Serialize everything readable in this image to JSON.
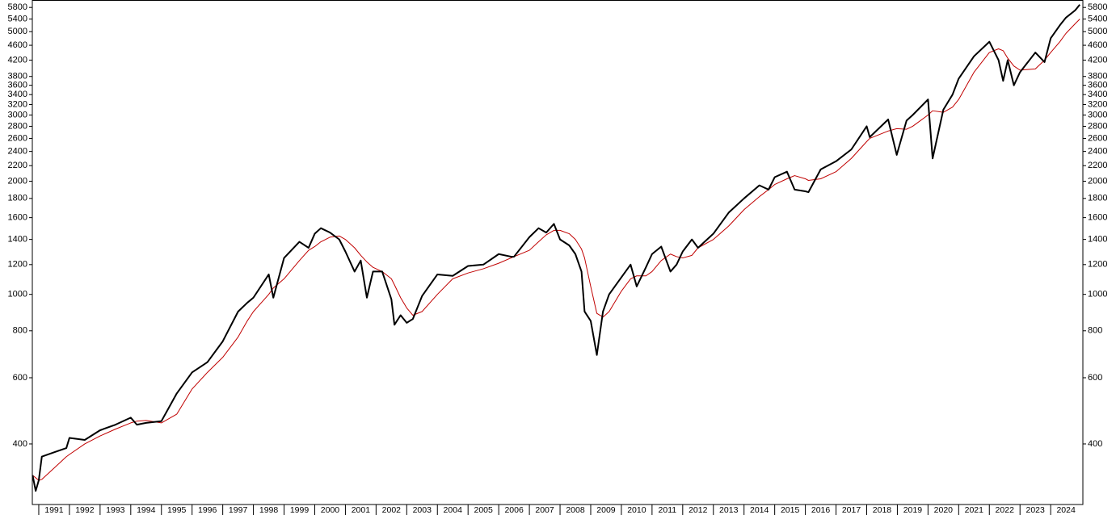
{
  "chart_data": {
    "type": "line",
    "log_y": true,
    "xlim": [
      1990.79,
      2025.05
    ],
    "ylim": [
      276,
      6070
    ],
    "xticks": [
      1991,
      1992,
      1993,
      1994,
      1995,
      1996,
      1997,
      1998,
      1999,
      2000,
      2001,
      2002,
      2003,
      2004,
      2005,
      2006,
      2007,
      2008,
      2009,
      2010,
      2011,
      2012,
      2013,
      2014,
      2015,
      2016,
      2017,
      2018,
      2019,
      2020,
      2021,
      2022,
      2023,
      2024
    ],
    "yticks": [
      400,
      600,
      800,
      1000,
      1200,
      1400,
      1600,
      1800,
      2000,
      2200,
      2400,
      2600,
      2800,
      3000,
      3200,
      3400,
      3600,
      3800,
      4200,
      4600,
      5000,
      5400,
      5800
    ],
    "x": [
      1990.8,
      1990.9,
      1991.0,
      1991.1,
      1991.5,
      1991.9,
      1992.0,
      1992.5,
      1993.0,
      1993.5,
      1994.0,
      1994.2,
      1994.5,
      1995.0,
      1995.5,
      1996.0,
      1996.5,
      1997.0,
      1997.5,
      1997.8,
      1998.0,
      1998.5,
      1998.65,
      1999.0,
      1999.5,
      1999.8,
      2000.0,
      2000.2,
      2000.5,
      2000.8,
      2001.0,
      2001.3,
      2001.5,
      2001.7,
      2001.9,
      2002.2,
      2002.5,
      2002.6,
      2002.8,
      2003.0,
      2003.2,
      2003.5,
      2004.0,
      2004.5,
      2005.0,
      2005.5,
      2006.0,
      2006.4,
      2006.5,
      2007.0,
      2007.3,
      2007.55,
      2007.8,
      2008.0,
      2008.3,
      2008.5,
      2008.7,
      2008.8,
      2009.0,
      2009.2,
      2009.4,
      2009.6,
      2010.0,
      2010.3,
      2010.5,
      2010.8,
      2011.0,
      2011.3,
      2011.6,
      2011.8,
      2012.0,
      2012.3,
      2012.5,
      2013.0,
      2013.5,
      2014.0,
      2014.5,
      2014.8,
      2015.0,
      2015.4,
      2015.65,
      2016.0,
      2016.1,
      2016.5,
      2017.0,
      2017.5,
      2018.0,
      2018.1,
      2018.7,
      2018.98,
      2019.3,
      2019.5,
      2020.0,
      2020.15,
      2020.5,
      2020.8,
      2021.0,
      2021.5,
      2022.0,
      2022.3,
      2022.45,
      2022.6,
      2022.8,
      2023.0,
      2023.5,
      2023.8,
      2024.0,
      2024.3,
      2024.5,
      2024.8,
      2024.95
    ],
    "series": [
      {
        "color": "#000000",
        "values": [
          330,
          300,
          320,
          370,
          380,
          390,
          415,
          410,
          435,
          450,
          470,
          450,
          455,
          460,
          545,
          620,
          660,
          750,
          900,
          950,
          980,
          1130,
          980,
          1250,
          1380,
          1330,
          1450,
          1500,
          1460,
          1400,
          1300,
          1150,
          1230,
          980,
          1150,
          1150,
          970,
          830,
          880,
          840,
          860,
          990,
          1130,
          1120,
          1190,
          1200,
          1280,
          1260,
          1260,
          1420,
          1500,
          1460,
          1540,
          1400,
          1350,
          1280,
          1150,
          900,
          850,
          690,
          900,
          1000,
          1110,
          1200,
          1050,
          1180,
          1280,
          1340,
          1150,
          1200,
          1300,
          1400,
          1330,
          1450,
          1650,
          1800,
          1950,
          1900,
          2050,
          2120,
          1900,
          1880,
          1870,
          2150,
          2260,
          2430,
          2800,
          2620,
          2920,
          2350,
          2900,
          3000,
          3300,
          2300,
          3100,
          3400,
          3750,
          4300,
          4700,
          4200,
          3700,
          4200,
          3600,
          3900,
          4400,
          4150,
          4800,
          5200,
          5450,
          5700,
          5900
        ]
      },
      {
        "color": "#c00000",
        "values": [
          330,
          325,
          320,
          322,
          345,
          370,
          375,
          400,
          420,
          438,
          455,
          460,
          462,
          455,
          480,
          560,
          620,
          680,
          770,
          850,
          900,
          1000,
          1040,
          1100,
          1230,
          1310,
          1340,
          1380,
          1420,
          1430,
          1400,
          1330,
          1270,
          1220,
          1180,
          1150,
          1100,
          1060,
          980,
          920,
          880,
          900,
          1000,
          1100,
          1140,
          1170,
          1210,
          1250,
          1260,
          1310,
          1380,
          1440,
          1480,
          1480,
          1450,
          1400,
          1320,
          1250,
          1050,
          890,
          870,
          900,
          1020,
          1100,
          1120,
          1120,
          1150,
          1230,
          1280,
          1260,
          1250,
          1270,
          1330,
          1400,
          1520,
          1680,
          1820,
          1900,
          1960,
          2030,
          2070,
          2030,
          2010,
          2030,
          2120,
          2300,
          2550,
          2600,
          2720,
          2760,
          2750,
          2800,
          3000,
          3080,
          3050,
          3150,
          3300,
          3900,
          4400,
          4500,
          4450,
          4250,
          4050,
          3950,
          3980,
          4200,
          4400,
          4700,
          4950,
          5250,
          5400
        ]
      }
    ]
  }
}
